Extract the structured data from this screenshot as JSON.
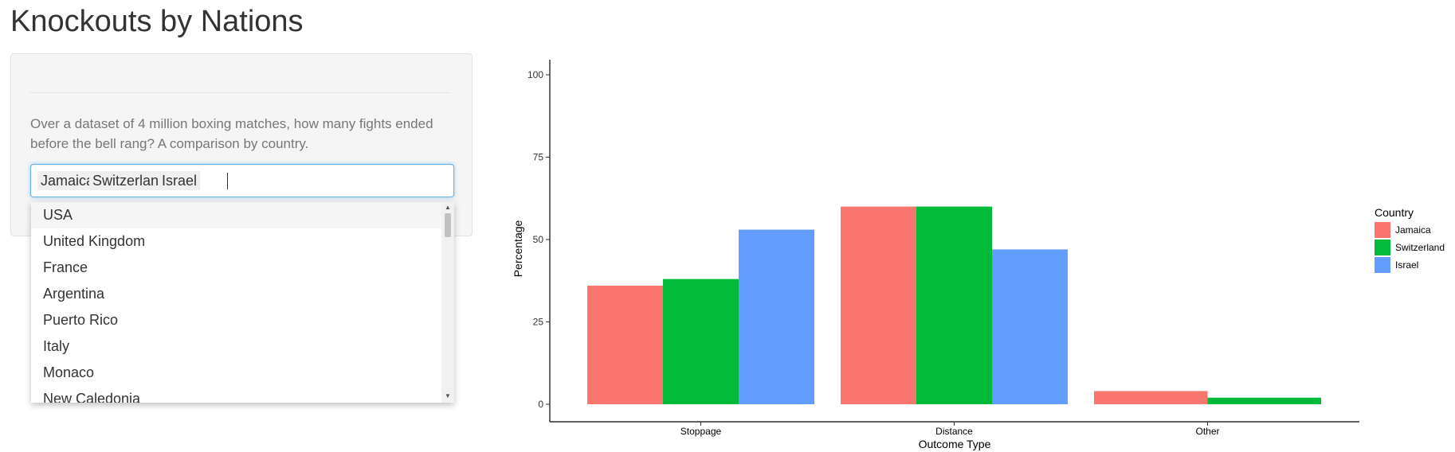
{
  "page": {
    "title": "Knockouts by Nations",
    "description": "Over a dataset of 4 million boxing matches, how many fights ended before the bell rang? A comparison by country."
  },
  "selector": {
    "selected": [
      "Jamaica",
      "Switzerland",
      "Israel"
    ],
    "options": [
      "USA",
      "United Kingdom",
      "France",
      "Argentina",
      "Puerto Rico",
      "Italy",
      "Monaco",
      "New Caledonia"
    ],
    "highlighted": "USA"
  },
  "chart_data": {
    "type": "bar",
    "categories": [
      "Stoppage",
      "Distance",
      "Other"
    ],
    "series": [
      {
        "name": "Jamaica",
        "color": "#F8766D",
        "values": [
          36,
          60,
          4
        ]
      },
      {
        "name": "Switzerland",
        "color": "#00BA38",
        "values": [
          38,
          60,
          2
        ]
      },
      {
        "name": "Israel",
        "color": "#619CFF",
        "values": [
          53,
          47,
          0
        ]
      }
    ],
    "xlabel": "Outcome Type",
    "ylabel": "Percentage",
    "ylim": [
      0,
      100
    ],
    "yticks": [
      "0",
      "25",
      "50",
      "75",
      "100"
    ],
    "legend_title": "Country",
    "legend_position": "right",
    "grid": false
  }
}
